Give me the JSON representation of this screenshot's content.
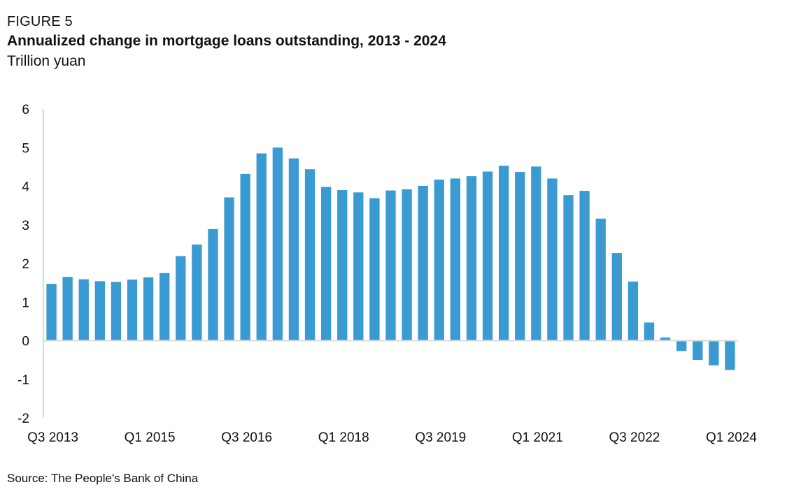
{
  "figure_label": "FIGURE 5",
  "source": "Source: The People's Bank of China",
  "colors": {
    "bar": "#3a9ad2",
    "axis": "#d9d9d9",
    "text": "#111111"
  },
  "chart_data": {
    "type": "bar",
    "title": "Annualized change in mortgage loans outstanding, 2013 - 2024",
    "subtitle": "Trillion yuan",
    "xlabel": "",
    "ylabel": "",
    "ylim": [
      -2,
      6
    ],
    "yticks": [
      -2,
      -1,
      0,
      1,
      2,
      3,
      4,
      5,
      6
    ],
    "grid": false,
    "legend": "none",
    "categories": [
      "Q3 2013",
      "Q4 2013",
      "Q1 2014",
      "Q2 2014",
      "Q3 2014",
      "Q4 2014",
      "Q1 2015",
      "Q2 2015",
      "Q3 2015",
      "Q4 2015",
      "Q1 2016",
      "Q2 2016",
      "Q3 2016",
      "Q4 2016",
      "Q1 2017",
      "Q2 2017",
      "Q3 2017",
      "Q4 2017",
      "Q1 2018",
      "Q2 2018",
      "Q3 2018",
      "Q4 2018",
      "Q1 2019",
      "Q2 2019",
      "Q3 2019",
      "Q4 2019",
      "Q1 2020",
      "Q2 2020",
      "Q3 2020",
      "Q4 2020",
      "Q1 2021",
      "Q2 2021",
      "Q3 2021",
      "Q4 2021",
      "Q1 2022",
      "Q2 2022",
      "Q3 2022",
      "Q4 2022",
      "Q1 2023",
      "Q2 2023",
      "Q3 2023",
      "Q4 2023",
      "Q1 2024"
    ],
    "values": [
      1.47,
      1.65,
      1.59,
      1.54,
      1.52,
      1.58,
      1.64,
      1.75,
      2.19,
      2.49,
      2.89,
      3.71,
      4.32,
      4.85,
      5.0,
      4.72,
      4.44,
      3.98,
      3.9,
      3.84,
      3.69,
      3.89,
      3.92,
      4.01,
      4.17,
      4.2,
      4.26,
      4.38,
      4.53,
      4.37,
      4.51,
      4.2,
      3.77,
      3.88,
      3.16,
      2.27,
      1.53,
      0.47,
      0.08,
      -0.27,
      -0.5,
      -0.64,
      -0.76
    ],
    "tick_labels": [
      "Q3 2013",
      "Q1 2015",
      "Q3 2016",
      "Q1 2018",
      "Q3 2019",
      "Q1 2021",
      "Q3 2022",
      "Q1 2024"
    ]
  }
}
